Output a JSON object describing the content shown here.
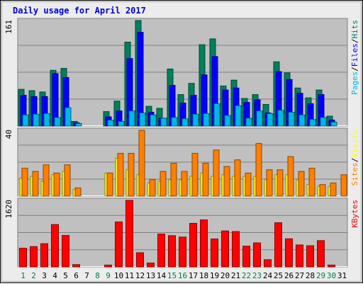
{
  "chart_data": {
    "type": "bar",
    "title": "Daily usage for April 2017",
    "colors": {
      "background": "#ececec",
      "plot": "#c0c0c0",
      "title": "#0000cc",
      "pages": "#00b7e6",
      "files": "#0000ff",
      "hits": "#00805c",
      "visits": "#ffff00",
      "sites": "#ff8000",
      "kbytes": "#ff0000",
      "weekend_day": "#008040",
      "weekday": "#000000"
    },
    "categories": [
      "1",
      "2",
      "3",
      "4",
      "5",
      "6",
      "7",
      "8",
      "9",
      "10",
      "11",
      "12",
      "13",
      "14",
      "15",
      "16",
      "17",
      "18",
      "19",
      "20",
      "21",
      "22",
      "23",
      "24",
      "25",
      "26",
      "27",
      "28",
      "29",
      "30",
      "31"
    ],
    "weekend_days": [
      "1",
      "2",
      "8",
      "9",
      "15",
      "16",
      "22",
      "23",
      "29",
      "30"
    ],
    "panels": [
      {
        "id": "usage",
        "ymax_label": "161",
        "ymax": 161,
        "legend": [
          {
            "text": "Pages",
            "color_key": "pages"
          },
          {
            "text": "Files",
            "color_key": "files"
          },
          {
            "text": "Hits",
            "color_key": "hits"
          }
        ],
        "series": [
          {
            "name": "Hits",
            "color_key": "hits",
            "values": [
              56,
              54,
              52,
              85,
              88,
              7,
              0,
              0,
              22,
              38,
              128,
              161,
              30,
              27,
              87,
              48,
              65,
              124,
              133,
              61,
              70,
              42,
              48,
              33,
              98,
              81,
              58,
              43,
              55,
              15,
              0
            ]
          },
          {
            "name": "Files",
            "color_key": "files",
            "values": [
              47,
              45,
              45,
              80,
              74,
              5,
              0,
              0,
              14,
              23,
              103,
              143,
              21,
              12,
              62,
              35,
              47,
              78,
              106,
              55,
              58,
              36,
              40,
              20,
              83,
              71,
              50,
              34,
              48,
              9,
              0
            ]
          },
          {
            "name": "Pages",
            "color_key": "pages",
            "values": [
              17,
              18,
              19,
              13,
              28,
              4,
              0,
              0,
              9,
              7,
              23,
              20,
              17,
              12,
              13,
              11,
              18,
              19,
              34,
              16,
              31,
              12,
              23,
              19,
              24,
              21,
              17,
              10,
              13,
              6,
              0
            ]
          }
        ]
      },
      {
        "id": "visits",
        "ymax_label": "40",
        "ymax": 40,
        "legend": [
          {
            "text": "Sites",
            "color_key": "sites"
          },
          {
            "text": "Visits",
            "color_key": "visits"
          }
        ],
        "series": [
          {
            "name": "Visits",
            "color_key": "visits",
            "values": [
              11,
              12,
              9,
              13,
              15,
              4,
              0,
              0,
              14,
              23,
              16,
              13,
              8,
              9,
              10,
              10,
              12,
              14,
              12,
              13,
              12,
              12,
              12,
              10,
              13,
              13,
              10,
              7,
              6,
              6,
              0
            ]
          },
          {
            "name": "Sites",
            "color_key": "sites",
            "values": [
              17,
              15,
              19,
              14,
              19,
              5,
              0,
              0,
              14,
              26,
              26,
              40,
              10,
              15,
              20,
              15,
              26,
              20,
              28,
              18,
              22,
              14,
              32,
              16,
              16,
              24,
              15,
              17,
              7,
              8,
              13
            ]
          }
        ]
      },
      {
        "id": "kbytes",
        "ymax_label": "1620",
        "ymax": 1620,
        "legend": [
          {
            "text": "KBytes",
            "color_key": "kbytes"
          }
        ],
        "series": [
          {
            "name": "KBytes",
            "color_key": "kbytes",
            "values": [
              455,
              495,
              565,
              1030,
              765,
              55,
              0,
              0,
              45,
              1095,
              1620,
              345,
              95,
              800,
              760,
              725,
              1060,
              1145,
              680,
              875,
              860,
              505,
              585,
              175,
              1075,
              685,
              535,
              515,
              640,
              45,
              0
            ]
          }
        ]
      }
    ]
  }
}
